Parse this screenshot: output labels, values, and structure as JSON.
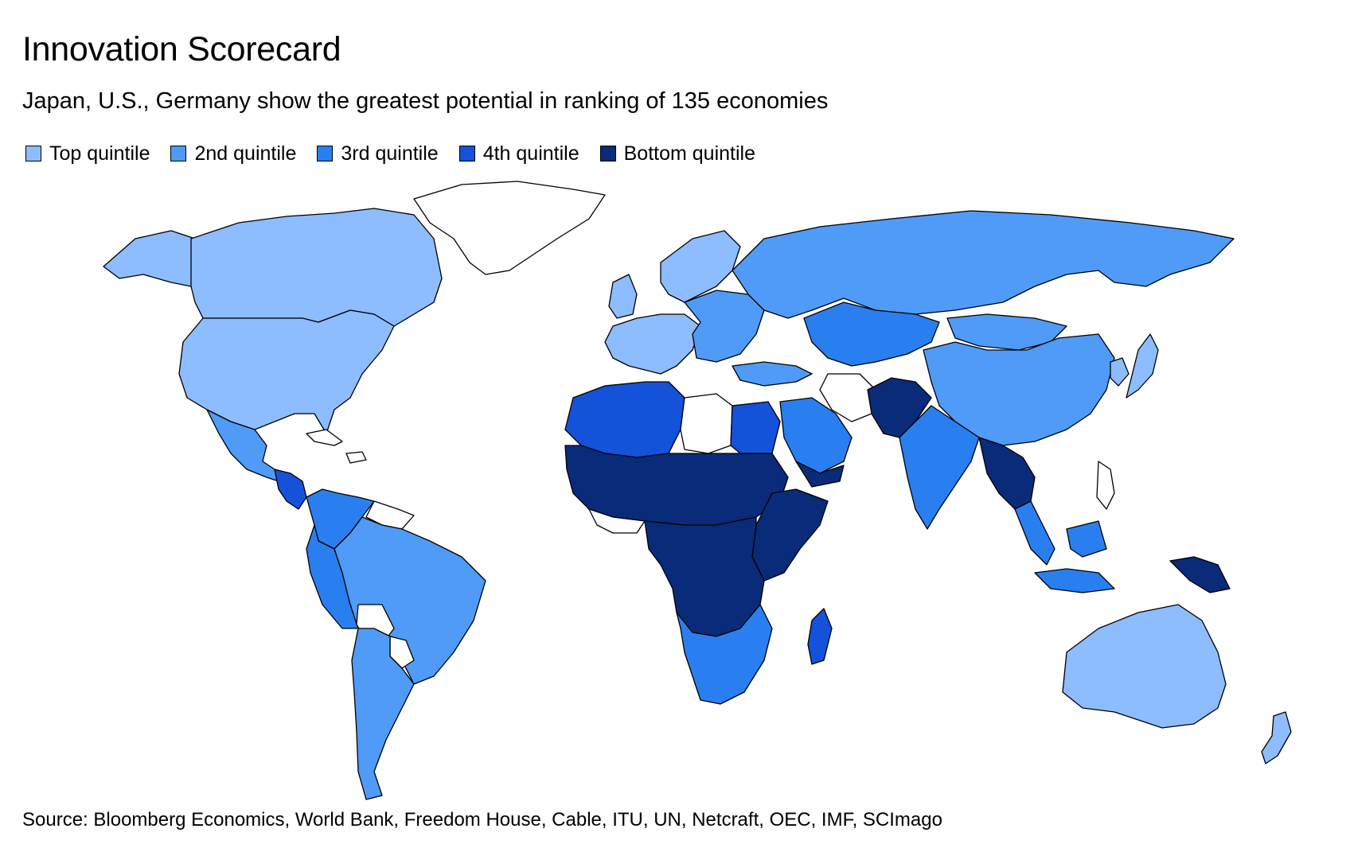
{
  "title": "Innovation Scorecard",
  "subtitle": "Japan, U.S., Germany show the greatest potential in ranking of 135 economies",
  "legend": [
    {
      "label": "Top quintile",
      "color": "#8dbcff"
    },
    {
      "label": "2nd quintile",
      "color": "#4f9bf7"
    },
    {
      "label": "3rd quintile",
      "color": "#2a7ff0"
    },
    {
      "label": "4th quintile",
      "color": "#1452d9"
    },
    {
      "label": "Bottom quintile",
      "color": "#0a2b7a"
    }
  ],
  "no_data_color": "#ffffff",
  "source": "Source: Bloomberg Economics, World Bank, Freedom House, Cable, ITU, UN, Netcraft, OEC, IMF, SCImago",
  "regions": [
    {
      "name": "canada",
      "quintile": 0
    },
    {
      "name": "usa",
      "quintile": 0
    },
    {
      "name": "alaska",
      "quintile": 0
    },
    {
      "name": "mexico",
      "quintile": 1
    },
    {
      "name": "central-america",
      "quintile": 3
    },
    {
      "name": "colombia-venezuela",
      "quintile": 2
    },
    {
      "name": "peru-ecuador",
      "quintile": 2
    },
    {
      "name": "brazil",
      "quintile": 1
    },
    {
      "name": "argentina-chile",
      "quintile": 1
    },
    {
      "name": "greenland",
      "quintile": null
    },
    {
      "name": "europe-west",
      "quintile": 0
    },
    {
      "name": "scandinavia",
      "quintile": 0
    },
    {
      "name": "uk-ireland",
      "quintile": 0
    },
    {
      "name": "eastern-europe",
      "quintile": 1
    },
    {
      "name": "russia",
      "quintile": 1
    },
    {
      "name": "kazakhstan-central-asia",
      "quintile": 2
    },
    {
      "name": "mongolia",
      "quintile": 1
    },
    {
      "name": "china",
      "quintile": 1
    },
    {
      "name": "japan",
      "quintile": 0
    },
    {
      "name": "korea",
      "quintile": 0
    },
    {
      "name": "india",
      "quintile": 2
    },
    {
      "name": "pakistan-afghanistan",
      "quintile": 4
    },
    {
      "name": "iran",
      "quintile": null
    },
    {
      "name": "turkey",
      "quintile": 1
    },
    {
      "name": "saudi-arabia",
      "quintile": 2
    },
    {
      "name": "yemen",
      "quintile": 4
    },
    {
      "name": "north-africa-west",
      "quintile": 3
    },
    {
      "name": "libya",
      "quintile": null
    },
    {
      "name": "egypt",
      "quintile": 3
    },
    {
      "name": "sahel",
      "quintile": 4
    },
    {
      "name": "central-africa",
      "quintile": 4
    },
    {
      "name": "east-africa",
      "quintile": 4
    },
    {
      "name": "southern-africa",
      "quintile": 2
    },
    {
      "name": "madagascar",
      "quintile": 3
    },
    {
      "name": "myanmar-indochina",
      "quintile": 4
    },
    {
      "name": "southeast-asia",
      "quintile": 2
    },
    {
      "name": "indonesia",
      "quintile": 2
    },
    {
      "name": "papua",
      "quintile": 4
    },
    {
      "name": "australia",
      "quintile": 0
    },
    {
      "name": "new-zealand",
      "quintile": 0
    }
  ]
}
